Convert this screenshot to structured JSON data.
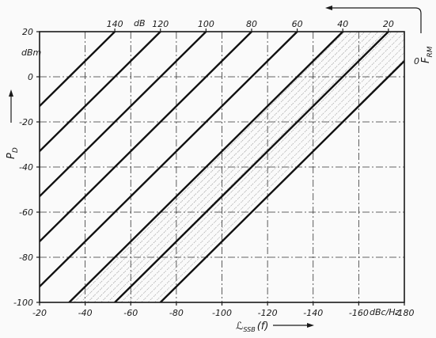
{
  "chart_data": {
    "type": "line",
    "title": "",
    "xlabel": "ℒ SSB (f)",
    "xunit": "dBc/Hz",
    "ylabel": "P D",
    "yunit": "dBm",
    "top_axis_label": "F RM",
    "top_axis_unit": "dB",
    "xlim": [
      -20,
      -180
    ],
    "ylim": [
      -100,
      20
    ],
    "x_ticks": [
      -20,
      -40,
      -60,
      -80,
      -100,
      -120,
      -140,
      -160,
      -180
    ],
    "y_ticks": [
      20,
      0,
      -20,
      -40,
      -60,
      -80,
      -100
    ],
    "grid": true,
    "series": [
      {
        "f_rm": 140,
        "points": [
          [
            -20,
            -13
          ],
          [
            -53,
            20
          ]
        ]
      },
      {
        "f_rm": 120,
        "points": [
          [
            -20,
            -33
          ],
          [
            -73,
            20
          ]
        ]
      },
      {
        "f_rm": 100,
        "points": [
          [
            -20,
            -53
          ],
          [
            -93,
            20
          ]
        ]
      },
      {
        "f_rm": 80,
        "points": [
          [
            -20,
            -73
          ],
          [
            -113,
            20
          ]
        ]
      },
      {
        "f_rm": 60,
        "points": [
          [
            -20,
            -93
          ],
          [
            -133,
            20
          ]
        ]
      },
      {
        "f_rm": 40,
        "points": [
          [
            -33,
            -100
          ],
          [
            -153,
            20
          ]
        ]
      },
      {
        "f_rm": 20,
        "points": [
          [
            -53,
            -100
          ],
          [
            -173,
            20
          ]
        ]
      },
      {
        "f_rm": 0,
        "points": [
          [
            -73,
            -100
          ],
          [
            -180,
            7
          ]
        ]
      }
    ],
    "shaded_region": {
      "hatched": true,
      "between": [
        40,
        0
      ]
    },
    "top_ticks": [
      140,
      120,
      100,
      80,
      60,
      40,
      20,
      0
    ],
    "top_tick_labels": [
      "140",
      "120",
      "100",
      "80",
      "60",
      "40",
      "20",
      "0"
    ],
    "y_tick_labels": [
      "20",
      "0",
      "-20",
      "-40",
      "-60",
      "-80",
      "-100"
    ],
    "x_tick_labels": [
      "-20",
      "-40",
      "-60",
      "-80",
      "-100",
      "-120",
      "-140",
      "-160",
      "-180"
    ],
    "labels": {
      "y_unit": "dBm",
      "x_unit": "dBc/Hz",
      "top_unit": "dB",
      "y_title_main": "P",
      "y_title_sub": "D",
      "x_title_main": "ℒ",
      "x_title_sub": "SSB",
      "x_title_tail": "(f)",
      "top_title_main": "F",
      "top_title_sub": "RM"
    }
  }
}
